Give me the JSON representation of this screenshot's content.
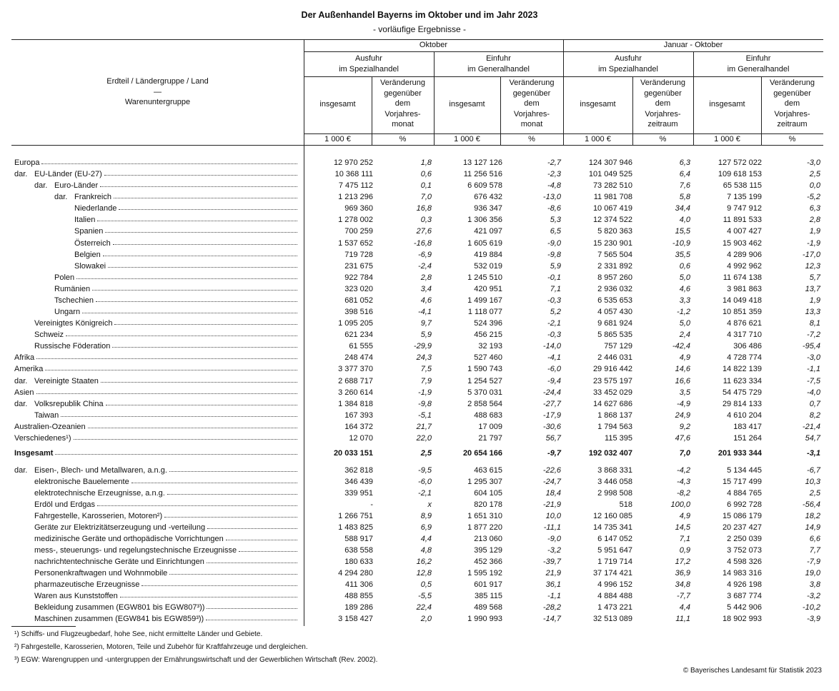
{
  "title": "Der Außenhandel Bayerns im Oktober und im Jahr 2023",
  "subtitle": "- vorläufige Ergebnisse -",
  "header": {
    "row_label": [
      "Erdteil / Ländergruppe / Land",
      "—",
      "Warenuntergruppe"
    ],
    "periods": [
      "Oktober",
      "Januar - Oktober"
    ],
    "groups": [
      "Ausfuhr\nim Spezialhandel",
      "Einfuhr\nim Generalhandel",
      "Ausfuhr\nim Spezialhandel",
      "Einfuhr\nim Generalhandel"
    ],
    "sub": [
      "insgesamt",
      "Veränderung\ngegenüber\ndem\nVorjahres-\nmonat",
      "insgesamt",
      "Veränderung\ngegenüber\ndem\nVorjahres-\nmonat",
      "insgesamt",
      "Veränderung\ngegenüber\ndem\nVorjahres-\nzeitraum",
      "insgesamt",
      "Veränderung\ngegenüber\ndem\nVorjahres-\nzeitraum"
    ],
    "units": [
      "1 000 €",
      "%",
      "1 000 €",
      "%",
      "1 000 €",
      "%",
      "1 000 €",
      "%"
    ]
  },
  "rows": [
    {
      "prefix": "",
      "label": "Europa",
      "level": 0,
      "values": [
        "12 970 252",
        "1,8",
        "13 127 126",
        "-2,7",
        "124 307 946",
        "6,3",
        "127 572 022",
        "-3,0"
      ]
    },
    {
      "prefix": "dar.",
      "label": "EU-Länder (EU-27)",
      "level": 1,
      "values": [
        "10 368 111",
        "0,6",
        "11 256 516",
        "-2,3",
        "101 049 525",
        "6,4",
        "109 618 153",
        "2,5"
      ]
    },
    {
      "prefix": "dar.",
      "label": "Euro-Länder",
      "level": 2,
      "values": [
        "7 475 112",
        "0,1",
        "6 609 578",
        "-4,8",
        "73 282 510",
        "7,6",
        "65 538 115",
        "0,0"
      ]
    },
    {
      "prefix": "dar.",
      "label": "Frankreich",
      "level": 3,
      "values": [
        "1 213 296",
        "7,0",
        "676 432",
        "-13,0",
        "11 981 708",
        "5,8",
        "7 135 199",
        "-5,2"
      ]
    },
    {
      "prefix": "",
      "label": "Niederlande",
      "level": 3,
      "values": [
        "969 360",
        "16,8",
        "936 347",
        "-8,6",
        "10 067 419",
        "34,4",
        "9 747 912",
        "6,3"
      ]
    },
    {
      "prefix": "",
      "label": "Italien",
      "level": 3,
      "values": [
        "1 278 002",
        "0,3",
        "1 306 356",
        "5,3",
        "12 374 522",
        "4,0",
        "11 891 533",
        "2,8"
      ]
    },
    {
      "prefix": "",
      "label": "Spanien",
      "level": 3,
      "values": [
        "700 259",
        "27,6",
        "421 097",
        "6,5",
        "5 820 363",
        "15,5",
        "4 007 427",
        "1,9"
      ]
    },
    {
      "prefix": "",
      "label": "Österreich",
      "level": 3,
      "values": [
        "1 537 652",
        "-16,8",
        "1 605 619",
        "-9,0",
        "15 230 901",
        "-10,9",
        "15 903 462",
        "-1,9"
      ]
    },
    {
      "prefix": "",
      "label": "Belgien",
      "level": 3,
      "values": [
        "719 728",
        "-6,9",
        "419 884",
        "-9,8",
        "7 565 504",
        "35,5",
        "4 289 906",
        "-17,0"
      ]
    },
    {
      "prefix": "",
      "label": "Slowakei",
      "level": 3,
      "values": [
        "231 675",
        "-2,4",
        "532 019",
        "5,9",
        "2 331 892",
        "0,6",
        "4 992 962",
        "12,3"
      ]
    },
    {
      "prefix": "",
      "label": "Polen",
      "level": 2,
      "values": [
        "922 784",
        "2,8",
        "1 245 510",
        "-0,1",
        "8 957 260",
        "5,0",
        "11 674 138",
        "5,7"
      ]
    },
    {
      "prefix": "",
      "label": "Rumänien",
      "level": 2,
      "values": [
        "323 020",
        "3,4",
        "420 951",
        "7,1",
        "2 936 032",
        "4,6",
        "3 981 863",
        "13,7"
      ]
    },
    {
      "prefix": "",
      "label": "Tschechien",
      "level": 2,
      "values": [
        "681 052",
        "4,6",
        "1 499 167",
        "-0,3",
        "6 535 653",
        "3,3",
        "14 049 418",
        "1,9"
      ]
    },
    {
      "prefix": "",
      "label": "Ungarn",
      "level": 2,
      "values": [
        "398 516",
        "-4,1",
        "1 118 077",
        "5,2",
        "4 057 430",
        "-1,2",
        "10 851 359",
        "13,3"
      ]
    },
    {
      "prefix": "",
      "label": "Vereinigtes Königreich",
      "level": 1,
      "values": [
        "1 095 205",
        "9,7",
        "524 396",
        "-2,1",
        "9 681 924",
        "5,0",
        "4 876 621",
        "8,1"
      ]
    },
    {
      "prefix": "",
      "label": "Schweiz",
      "level": 1,
      "values": [
        "621 234",
        "5,9",
        "456 215",
        "-0,3",
        "5 865 535",
        "2,4",
        "4 317 710",
        "-7,2"
      ]
    },
    {
      "prefix": "",
      "label": "Russische Föderation",
      "level": 1,
      "values": [
        "61 555",
        "-29,9",
        "32 193",
        "-14,0",
        "757 129",
        "-42,4",
        "306 486",
        "-95,4"
      ]
    },
    {
      "prefix": "",
      "label": "Afrika",
      "level": 0,
      "values": [
        "248 474",
        "24,3",
        "527 460",
        "-4,1",
        "2 446 031",
        "4,9",
        "4 728 774",
        "-3,0"
      ]
    },
    {
      "prefix": "",
      "label": "Amerika",
      "level": 0,
      "values": [
        "3 377 370",
        "7,5",
        "1 590 743",
        "-6,0",
        "29 916 442",
        "14,6",
        "14 822 139",
        "-1,1"
      ]
    },
    {
      "prefix": "dar.",
      "label": "Vereinigte Staaten",
      "level": 1,
      "values": [
        "2 688 717",
        "7,9",
        "1 254 527",
        "-9,4",
        "23 575 197",
        "16,6",
        "11 623 334",
        "-7,5"
      ]
    },
    {
      "prefix": "",
      "label": "Asien",
      "level": 0,
      "values": [
        "3 260 614",
        "-1,9",
        "5 370 031",
        "-24,4",
        "33 452 029",
        "3,5",
        "54 475 729",
        "-4,0"
      ]
    },
    {
      "prefix": "dar.",
      "label": "Volksrepublik China",
      "level": 1,
      "values": [
        "1 384 818",
        "-9,8",
        "2 858 564",
        "-27,7",
        "14 627 686",
        "-4,9",
        "29 814 133",
        "0,7"
      ]
    },
    {
      "prefix": "",
      "label": "Taiwan",
      "level": 1,
      "values": [
        "167 393",
        "-5,1",
        "488 683",
        "-17,9",
        "1 868 137",
        "24,9",
        "4 610 204",
        "8,2"
      ]
    },
    {
      "prefix": "",
      "label": "Australien-Ozeanien",
      "level": 0,
      "values": [
        "164 372",
        "21,7",
        "17 009",
        "-30,6",
        "1 794 563",
        "9,2",
        "183 417",
        "-21,4"
      ]
    },
    {
      "prefix": "",
      "label": "Verschiedenes¹)",
      "level": 0,
      "values": [
        "12 070",
        "22,0",
        "21 797",
        "56,7",
        "115 395",
        "47,6",
        "151 264",
        "54,7"
      ]
    }
  ],
  "total": {
    "label": "Insgesamt",
    "values": [
      "20 033 151",
      "2,5",
      "20 654 166",
      "-9,7",
      "192 032 407",
      "7,0",
      "201 933 344",
      "-3,1"
    ]
  },
  "goods": [
    {
      "prefix": "dar.",
      "label": "Eisen-, Blech- und Metallwaren, a.n.g.",
      "values": [
        "362 818",
        "-9,5",
        "463 615",
        "-22,6",
        "3 868 331",
        "-4,2",
        "5 134 445",
        "-6,7"
      ]
    },
    {
      "prefix": "",
      "label": "elektronische Bauelemente",
      "values": [
        "346 439",
        "-6,0",
        "1 295 307",
        "-24,7",
        "3 446 058",
        "-4,3",
        "15 717 499",
        "10,3"
      ]
    },
    {
      "prefix": "",
      "label": "elektrotechnische Erzeugnisse, a.n.g.",
      "values": [
        "339 951",
        "-2,1",
        "604 105",
        "18,4",
        "2 998 508",
        "-8,2",
        "4 884 765",
        "2,5"
      ]
    },
    {
      "prefix": "",
      "label": "Erdöl und Erdgas",
      "values": [
        "-",
        "x",
        "820 178",
        "-21,9",
        "518",
        "100,0",
        "6 992 728",
        "-56,4"
      ]
    },
    {
      "prefix": "",
      "label": "Fahrgestelle, Karosserien, Motoren²)",
      "values": [
        "1 266 751",
        "8,9",
        "1 651 310",
        "10,0",
        "12 160 085",
        "4,9",
        "15 086 179",
        "18,2"
      ]
    },
    {
      "prefix": "",
      "label": "Geräte zur Elektrizitätserzeugung und -verteilung",
      "values": [
        "1 483 825",
        "6,9",
        "1 877 220",
        "-11,1",
        "14 735 341",
        "14,5",
        "20 237 427",
        "14,9"
      ]
    },
    {
      "prefix": "",
      "label": "medizinische Geräte und orthopädische Vorrichtungen",
      "values": [
        "588 917",
        "4,4",
        "213 060",
        "-9,0",
        "6 147 052",
        "7,1",
        "2 250 039",
        "6,6"
      ]
    },
    {
      "prefix": "",
      "label": "mess-, steuerungs- und regelungstechnische Erzeugnisse",
      "values": [
        "638 558",
        "4,8",
        "395 129",
        "-3,2",
        "5 951 647",
        "0,9",
        "3 752 073",
        "7,7"
      ]
    },
    {
      "prefix": "",
      "label": "nachrichtentechnische Geräte und Einrichtungen",
      "values": [
        "180 633",
        "16,2",
        "452 366",
        "-39,7",
        "1 719 714",
        "17,2",
        "4 598 326",
        "-7,9"
      ]
    },
    {
      "prefix": "",
      "label": "Personenkraftwagen und Wohnmobile",
      "values": [
        "4 294 280",
        "12,8",
        "1 595 192",
        "21,9",
        "37 174 421",
        "36,9",
        "14 983 316",
        "19,0"
      ]
    },
    {
      "prefix": "",
      "label": "pharmazeutische Erzeugnisse",
      "values": [
        "411 306",
        "0,5",
        "601 917",
        "36,1",
        "4 996 152",
        "34,8",
        "4 926 198",
        "3,8"
      ]
    },
    {
      "prefix": "",
      "label": "Waren aus Kunststoffen",
      "values": [
        "488 855",
        "-5,5",
        "385 115",
        "-1,1",
        "4 884 488",
        "-7,7",
        "3 687 774",
        "-3,2"
      ]
    },
    {
      "prefix": "",
      "label": "Bekleidung zusammen (EGW801 bis EGW807³))",
      "values": [
        "189 286",
        "22,4",
        "489 568",
        "-28,2",
        "1 473 221",
        "4,4",
        "5 442 906",
        "-10,2"
      ]
    },
    {
      "prefix": "",
      "label": "Maschinen zusammen (EGW841 bis EGW859³))",
      "values": [
        "3 158 427",
        "2,0",
        "1 990 993",
        "-14,7",
        "32 513 089",
        "11,1",
        "18 902 993",
        "-3,9"
      ]
    }
  ],
  "footnotes": [
    "¹) Schiffs- und Flugzeugbedarf, hohe See, nicht ermittelte Länder und Gebiete.",
    "²) Fahrgestelle, Karosserien, Motoren, Teile und Zubehör für Kraftfahrzeuge und dergleichen.",
    "³) EGW: Warengruppen und -untergruppen der Ernährungswirtschaft und der Gewerblichen Wirtschaft (Rev. 2002)."
  ],
  "copyright": "© Bayerisches Landesamt für Statistik 2023"
}
